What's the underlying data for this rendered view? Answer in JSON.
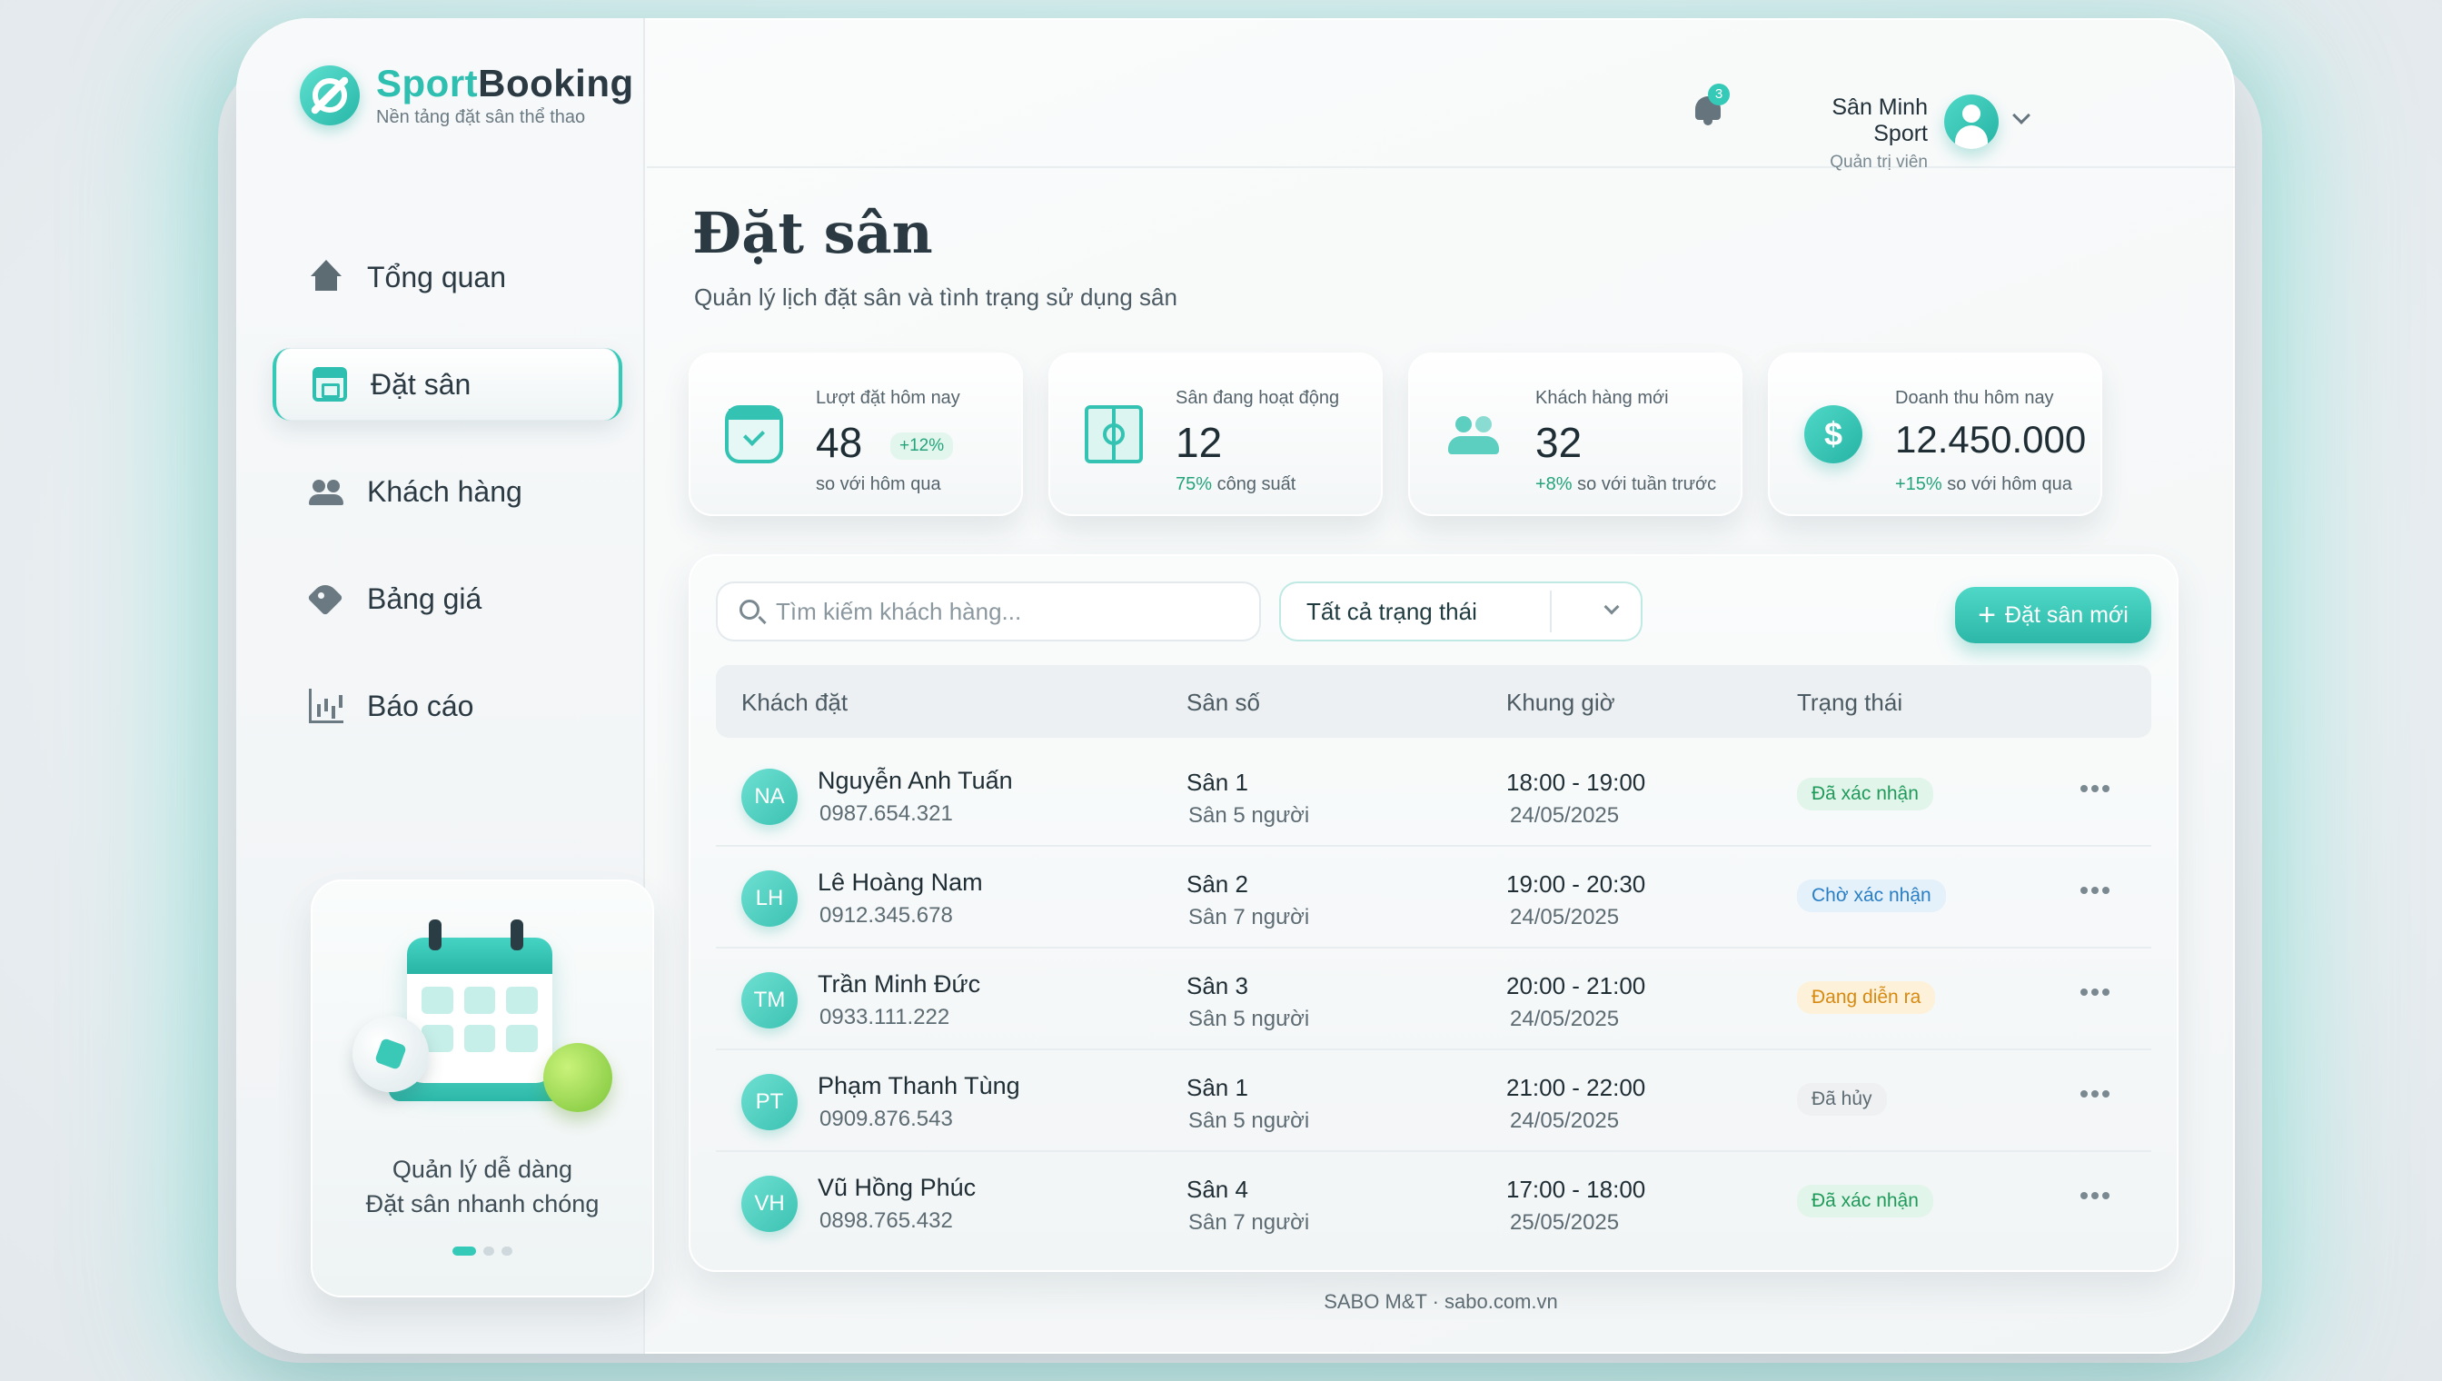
{
  "brand": {
    "name_part1": "Sport",
    "name_part2": "Booking",
    "tagline": "Nền tảng đặt sân thể thao"
  },
  "sidebar": {
    "items": [
      {
        "label": "Tổng quan",
        "icon": "home-icon",
        "active": false
      },
      {
        "label": "Đặt sân",
        "icon": "calendar-icon",
        "active": true
      },
      {
        "label": "Khách hàng",
        "icon": "users-icon",
        "active": false
      },
      {
        "label": "Bảng giá",
        "icon": "tag-icon",
        "active": false
      },
      {
        "label": "Báo cáo",
        "icon": "chart-icon",
        "active": false
      }
    ],
    "promo": {
      "line1": "Quản lý dễ dàng",
      "line2": "Đặt sân nhanh chóng"
    }
  },
  "header": {
    "notification_count": "3",
    "user_name": "Sân Minh Sport",
    "user_role": "Quản trị viên"
  },
  "page": {
    "title": "Đặt sân",
    "subtitle": "Quản lý lịch đặt sân và tình trạng sử dụng sân"
  },
  "stats": [
    {
      "label": "Lượt đặt hôm nay",
      "value": "48",
      "delta": "+12%",
      "foot": "so với hôm qua"
    },
    {
      "label": "Sân đang hoạt động",
      "value": "12",
      "delta": "75%",
      "foot": "công suất"
    },
    {
      "label": "Khách hàng mới",
      "value": "32",
      "delta": "+8%",
      "foot": "so với tuần trước"
    },
    {
      "label": "Doanh thu hôm nay",
      "value": "12.450.000",
      "delta": "+15%",
      "foot": "so với hôm qua"
    }
  ],
  "toolbar": {
    "search_placeholder": "Tìm kiếm khách hàng...",
    "status_filter": "Tất cả trạng thái",
    "new_booking": "Đặt sân mới"
  },
  "table": {
    "headers": [
      "Khách đặt",
      "Sân số",
      "Khung giờ",
      "Trạng thái"
    ],
    "rows": [
      {
        "initials": "NA",
        "name": "Nguyễn Anh Tuấn",
        "phone": "0987.654.321",
        "court": "Sân 1",
        "capacity": "Sân 5 người",
        "time": "18:00 - 19:00",
        "date": "24/05/2025",
        "status": "Đã xác nhận",
        "status_type": "ok"
      },
      {
        "initials": "LH",
        "name": "Lê Hoàng Nam",
        "phone": "0912.345.678",
        "court": "Sân 2",
        "capacity": "Sân 7 người",
        "time": "19:00 - 20:30",
        "date": "24/05/2025",
        "status": "Chờ xác nhận",
        "status_type": "wait"
      },
      {
        "initials": "TM",
        "name": "Trần Minh Đức",
        "phone": "0933.111.222",
        "court": "Sân 3",
        "capacity": "Sân 5 người",
        "time": "20:00 - 21:00",
        "date": "24/05/2025",
        "status": "Đang diễn ra",
        "status_type": "live"
      },
      {
        "initials": "PT",
        "name": "Phạm Thanh Tùng",
        "phone": "0909.876.543",
        "court": "Sân 1",
        "capacity": "Sân 5 người",
        "time": "21:00 - 22:00",
        "date": "24/05/2025",
        "status": "Đã hủy",
        "status_type": "cancel"
      },
      {
        "initials": "VH",
        "name": "Vũ Hồng Phúc",
        "phone": "0898.765.432",
        "court": "Sân 4",
        "capacity": "Sân 7 người",
        "time": "17:00 - 18:00",
        "date": "25/05/2025",
        "status": "Đã xác nhận",
        "status_type": "ok"
      }
    ]
  },
  "footer": "SABO M&T · sabo.com.vn",
  "colors": {
    "accent": "#35c9b8",
    "text": "#23323a"
  }
}
